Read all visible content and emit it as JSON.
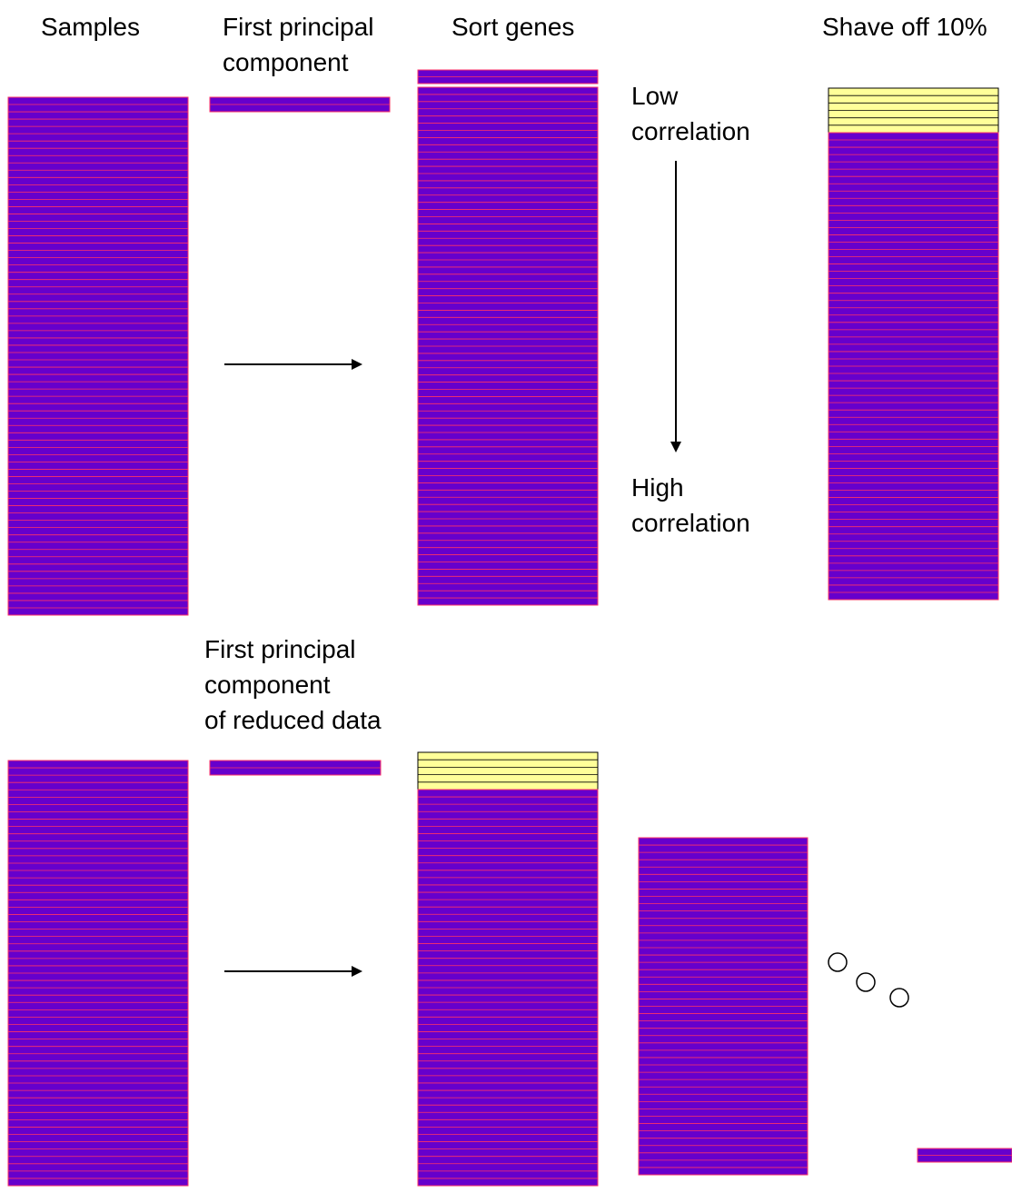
{
  "labels": {
    "samples": "Samples",
    "first_pc_line1": "First principal",
    "first_pc_line2": "component",
    "sort_genes": "Sort genes",
    "shave_off": "Shave off 10%",
    "low_line1": "Low",
    "low_line2": "correlation",
    "high_line1": "High",
    "high_line2": "correlation",
    "reduced_line1": "First principal",
    "reduced_line2": "component",
    "reduced_line3": "of reduced data"
  },
  "colors": {
    "row_fill": "#6600cc",
    "row_stroke": "#ff3366",
    "shaved_fill": "#ffff99",
    "shaved_stroke": "#000000",
    "arrow": "#000000"
  },
  "icons": {
    "ellipsis": "three-circles-icon",
    "arrow": "arrow-icon"
  }
}
